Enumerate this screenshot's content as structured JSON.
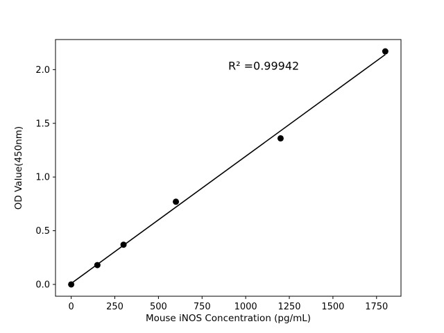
{
  "chart_data": {
    "type": "scatter",
    "title": "",
    "xlabel": "Mouse iNOS Concentration (pg/mL)",
    "ylabel": "OD Value(450nm)",
    "x": [
      0,
      150,
      300,
      600,
      1200,
      1800
    ],
    "y": [
      0.0,
      0.18,
      0.37,
      0.77,
      1.36,
      2.17
    ],
    "fit_line": {
      "x_start": 0,
      "x_end": 1800
    },
    "annotation": {
      "text": "R² =0.99942",
      "x": 900,
      "y": 2.0
    },
    "xlim": [
      -90,
      1890
    ],
    "ylim": [
      -0.11,
      2.28
    ],
    "xticks": [
      0,
      250,
      500,
      750,
      1000,
      1250,
      1500,
      1750
    ],
    "xtick_labels": [
      "0",
      "250",
      "500",
      "750",
      "1000",
      "1250",
      "1500",
      "1750"
    ],
    "yticks": [
      0.0,
      0.5,
      1.0,
      1.5,
      2.0
    ],
    "ytick_labels": [
      "0.0",
      "0.5",
      "1.0",
      "1.5",
      "2.0"
    ],
    "marker_color": "#000000",
    "line_color": "#000000",
    "axis_color": "#000000",
    "background": "#ffffff",
    "grid": "off",
    "legend": "none"
  }
}
